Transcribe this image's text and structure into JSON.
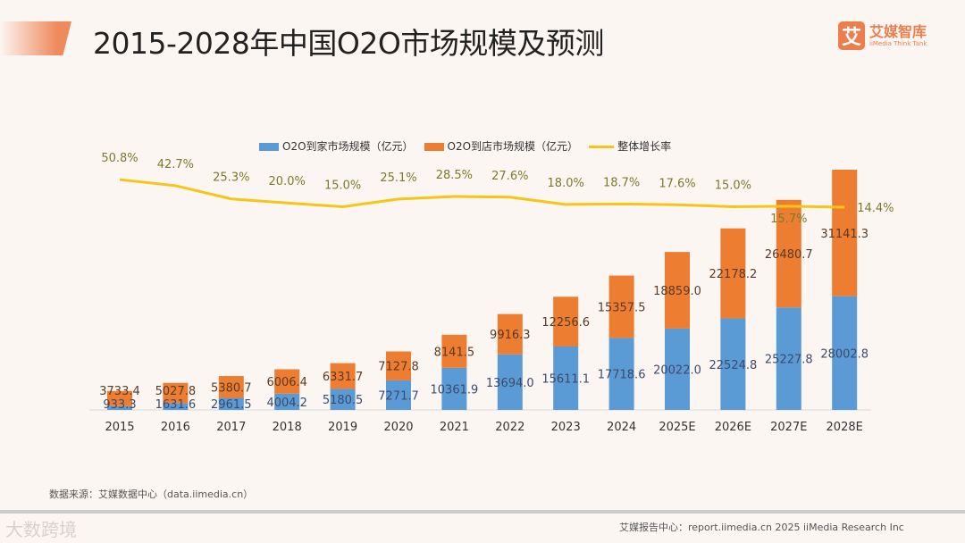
{
  "header": {
    "title": "2015-2028年中国O2O市场规模及预测",
    "logo_mark": "艾",
    "logo_name": "艾媒智库",
    "logo_sub": "iiMedia Think Tank"
  },
  "colors": {
    "blue": "#5b9bd5",
    "orange": "#ed7d31",
    "line": "#f5c518",
    "accent": "#ec7e4e"
  },
  "chart_data": {
    "type": "bar",
    "stacked": true,
    "title": "2015-2028年中国O2O市场规模及预测",
    "categories": [
      "2015",
      "2016",
      "2017",
      "2018",
      "2019",
      "2020",
      "2021",
      "2022",
      "2023",
      "2024",
      "2025E",
      "2026E",
      "2027E",
      "2028E"
    ],
    "series": [
      {
        "name": "O2O到家市场规模（亿元）",
        "type": "bar",
        "values": [
          933.3,
          1631.6,
          2961.5,
          4004.2,
          5180.5,
          7271.7,
          10361.9,
          13694.0,
          15611.1,
          17718.6,
          20022.0,
          22524.8,
          25227.8,
          28002.8
        ],
        "labels": [
          "933.3",
          "1631.6",
          "2961.5",
          "4004.2",
          "5180.5",
          "7271.7",
          "10361.9",
          "13694.0",
          "15611.1",
          "17718.6",
          "20022.0",
          "22524.8",
          "25227.8",
          "28002.8"
        ]
      },
      {
        "name": "O2O到店市场规模（亿元）",
        "type": "bar",
        "values": [
          3733.4,
          5027.8,
          5380.7,
          6006.4,
          6331.7,
          7127.8,
          8141.5,
          9916.3,
          12256.6,
          15357.5,
          18859.0,
          22178.2,
          26480.7,
          31141.3
        ],
        "labels": [
          "3733.4",
          "5027.8",
          "5380.7",
          "6006.4",
          "6331.7",
          "7127.8",
          "8141.5",
          "9916.3",
          "12256.6",
          "15357.5",
          "18859.0",
          "22178.2",
          "26480.7",
          "31141.3"
        ]
      },
      {
        "name": "整体增长率",
        "type": "line",
        "values": [
          50.8,
          42.7,
          25.3,
          20.0,
          15.0,
          25.1,
          28.5,
          27.6,
          18.0,
          18.7,
          17.6,
          15.0,
          15.7,
          14.4
        ],
        "labels": [
          "50.8%",
          "42.7%",
          "25.3%",
          "20.0%",
          "15.0%",
          "25.1%",
          "28.5%",
          "27.6%",
          "18.0%",
          "18.7%",
          "17.6%",
          "15.0%",
          "15.7%",
          "14.4%"
        ]
      }
    ],
    "legend_position": "top-center",
    "grid": false
  },
  "source": "数据来源：艾媒数据中心（data.iimedia.cn）",
  "footer": {
    "watermark": "大数跨境",
    "right": "艾媒报告中心：report.iimedia.cn  2025 iiMedia Research Inc"
  }
}
